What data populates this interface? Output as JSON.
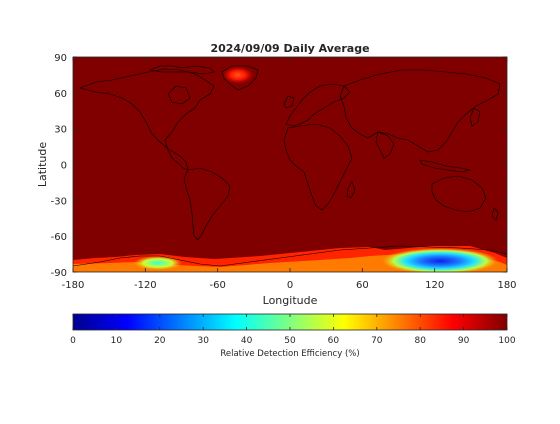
{
  "chart_data": {
    "type": "heatmap",
    "title": "2024/09/09 Daily Average",
    "xlabel": "Longitude",
    "ylabel": "Latitude",
    "xlim": [
      -180,
      180
    ],
    "ylim": [
      -90,
      90
    ],
    "xticks": [
      -180,
      -120,
      -60,
      0,
      60,
      120,
      180
    ],
    "yticks": [
      -90,
      -60,
      -30,
      0,
      30,
      60,
      90
    ],
    "colorbar": {
      "label": "Relative Detection Efficiency (%)",
      "range": [
        0,
        100
      ],
      "ticks": [
        0,
        10,
        20,
        30,
        40,
        50,
        60,
        70,
        80,
        90,
        100
      ],
      "colormap": "jet"
    },
    "background_value": 100,
    "colors": {
      "max": "#800000",
      "axis": "#262626",
      "coastline": "#000000"
    },
    "grid": false
  }
}
